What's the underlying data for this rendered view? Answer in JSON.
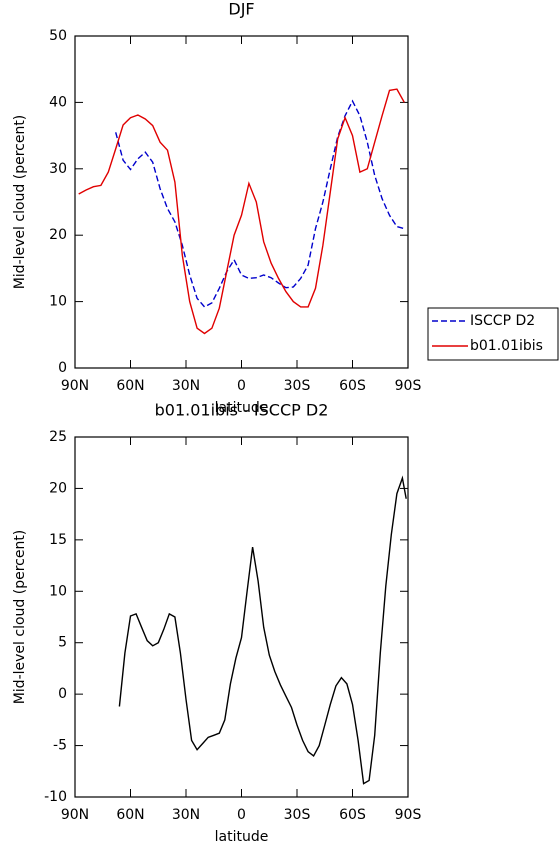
{
  "chart_data": [
    {
      "type": "line",
      "title": "DJF",
      "ylabel": "Mid-level cloud (percent)",
      "xlabel": "latitude",
      "xlim": [
        90,
        -90
      ],
      "ylim": [
        0,
        50
      ],
      "xticks": [
        {
          "value": 90,
          "label": "90N"
        },
        {
          "value": 60,
          "label": "60N"
        },
        {
          "value": 30,
          "label": "30N"
        },
        0,
        {
          "value": -30,
          "label": "30S"
        },
        {
          "value": -60,
          "label": "60S"
        },
        {
          "value": -90,
          "label": "90S"
        }
      ],
      "yticks": [
        0,
        10,
        20,
        30,
        40,
        50
      ],
      "legend": "right",
      "x": [
        88,
        84,
        80,
        76,
        72,
        68,
        64,
        60,
        56,
        52,
        48,
        44,
        40,
        36,
        32,
        28,
        24,
        20,
        16,
        12,
        8,
        4,
        0,
        -4,
        -8,
        -12,
        -16,
        -20,
        -24,
        -28,
        -32,
        -36,
        -40,
        -44,
        -48,
        -52,
        -56,
        -60,
        -64,
        -68,
        -72,
        -76,
        -80,
        -84,
        -88
      ],
      "series": [
        {
          "name": "ISCCP D2",
          "color": "#0000cc",
          "style": "dashed",
          "values": [
            null,
            null,
            null,
            null,
            null,
            35.5,
            31.3,
            29.9,
            31.5,
            32.5,
            31,
            27,
            24,
            22,
            18.5,
            14,
            10.5,
            9.2,
            9.8,
            12,
            14.5,
            16.3,
            14,
            13.5,
            13.6,
            14,
            13.6,
            12.8,
            12.1,
            12.2,
            13.5,
            15.5,
            21,
            25,
            30,
            34.8,
            38,
            40.2,
            38,
            34,
            29,
            25.5,
            23,
            21.3,
            21
          ]
        },
        {
          "name": "b01.01ibis",
          "color": "#e00000",
          "style": "solid",
          "values": [
            26.2,
            26.8,
            27.3,
            27.5,
            29.5,
            33,
            36.6,
            37.7,
            38.1,
            37.5,
            36.5,
            34,
            32.8,
            28,
            17,
            10,
            6,
            5.2,
            6,
            9,
            14.5,
            20,
            23,
            27.8,
            25,
            19,
            15.8,
            13.5,
            11.5,
            10,
            9.2,
            9.2,
            12,
            18.5,
            26.5,
            34.5,
            37.7,
            35,
            29.5,
            30,
            34,
            38,
            41.8,
            42,
            40
          ]
        }
      ]
    },
    {
      "type": "line",
      "title": "b01.01ibis - ISCCP D2",
      "ylabel": "Mid-level cloud (percent)",
      "xlabel": "latitude",
      "xlim": [
        90,
        -90
      ],
      "ylim": [
        -10,
        25
      ],
      "xticks": [
        {
          "value": 90,
          "label": "90N"
        },
        {
          "value": 60,
          "label": "60N"
        },
        {
          "value": 30,
          "label": "30N"
        },
        0,
        {
          "value": -30,
          "label": "30S"
        },
        {
          "value": -60,
          "label": "60S"
        },
        {
          "value": -90,
          "label": "90S"
        }
      ],
      "yticks": [
        -10,
        -5,
        0,
        5,
        10,
        15,
        20,
        25
      ],
      "x": [
        66,
        63,
        60,
        57,
        54,
        51,
        48,
        45,
        42,
        39,
        36,
        33,
        30,
        27,
        24,
        21,
        18,
        15,
        12,
        9,
        6,
        3,
        0,
        -3,
        -6,
        -9,
        -12,
        -15,
        -18,
        -21,
        -24,
        -27,
        -30,
        -33,
        -36,
        -39,
        -42,
        -45,
        -48,
        -51,
        -54,
        -57,
        -60,
        -63,
        -66,
        -69,
        -72,
        -75,
        -78,
        -81,
        -84,
        -87,
        -89
      ],
      "series": [
        {
          "color": "#000000",
          "style": "solid",
          "values": [
            -1.2,
            4,
            7.6,
            7.8,
            6.5,
            5.2,
            4.7,
            5,
            6.3,
            7.8,
            7.5,
            4,
            -0.5,
            -4.5,
            -5.4,
            -4.8,
            -4.2,
            -4,
            -3.8,
            -2.5,
            1,
            3.5,
            5.5,
            10,
            14.3,
            11,
            6.5,
            3.8,
            2.2,
            0.9,
            -0.2,
            -1.3,
            -3,
            -4.5,
            -5.6,
            -6,
            -5,
            -3,
            -1,
            0.8,
            1.6,
            1,
            -1,
            -4.5,
            -8.7,
            -8.4,
            -4,
            4,
            10.5,
            15.5,
            19.5,
            21,
            19
          ]
        }
      ]
    }
  ]
}
